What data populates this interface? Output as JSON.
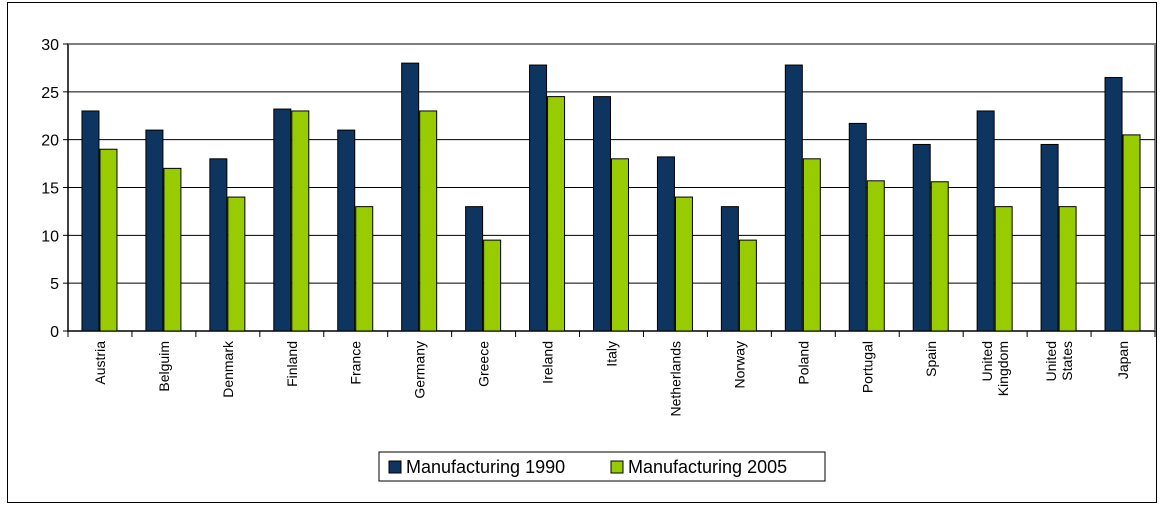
{
  "chart_data": {
    "type": "bar",
    "title": "",
    "xlabel": "",
    "ylabel": "",
    "ylim": [
      0,
      30
    ],
    "yticks": [
      0,
      5,
      10,
      15,
      20,
      25,
      30
    ],
    "grid": true,
    "legend_position": "bottom",
    "categories": [
      [
        "Austria"
      ],
      [
        "Belguim"
      ],
      [
        "Denmark"
      ],
      [
        "Finland"
      ],
      [
        "France"
      ],
      [
        "Germany"
      ],
      [
        "Greece"
      ],
      [
        "Ireland"
      ],
      [
        "Italy"
      ],
      [
        "Netherlands"
      ],
      [
        "Norway"
      ],
      [
        "Poland"
      ],
      [
        "Portugal"
      ],
      [
        "Spain"
      ],
      [
        "United",
        "Kingdom"
      ],
      [
        "United",
        "States"
      ],
      [
        "Japan"
      ]
    ],
    "series": [
      {
        "name": "Manufacturing 1990",
        "color": "#0E3460",
        "values": [
          23,
          21,
          18,
          23.2,
          21,
          28,
          13,
          27.8,
          24.5,
          18.2,
          13,
          27.8,
          21.7,
          19.5,
          23,
          19.5,
          26.5
        ]
      },
      {
        "name": "Manufacturing 2005",
        "color": "#99CC00",
        "values": [
          19,
          17,
          14,
          23,
          13,
          23,
          9.5,
          24.5,
          18,
          14,
          9.5,
          18,
          15.7,
          15.6,
          13,
          13,
          20.5
        ]
      }
    ]
  }
}
